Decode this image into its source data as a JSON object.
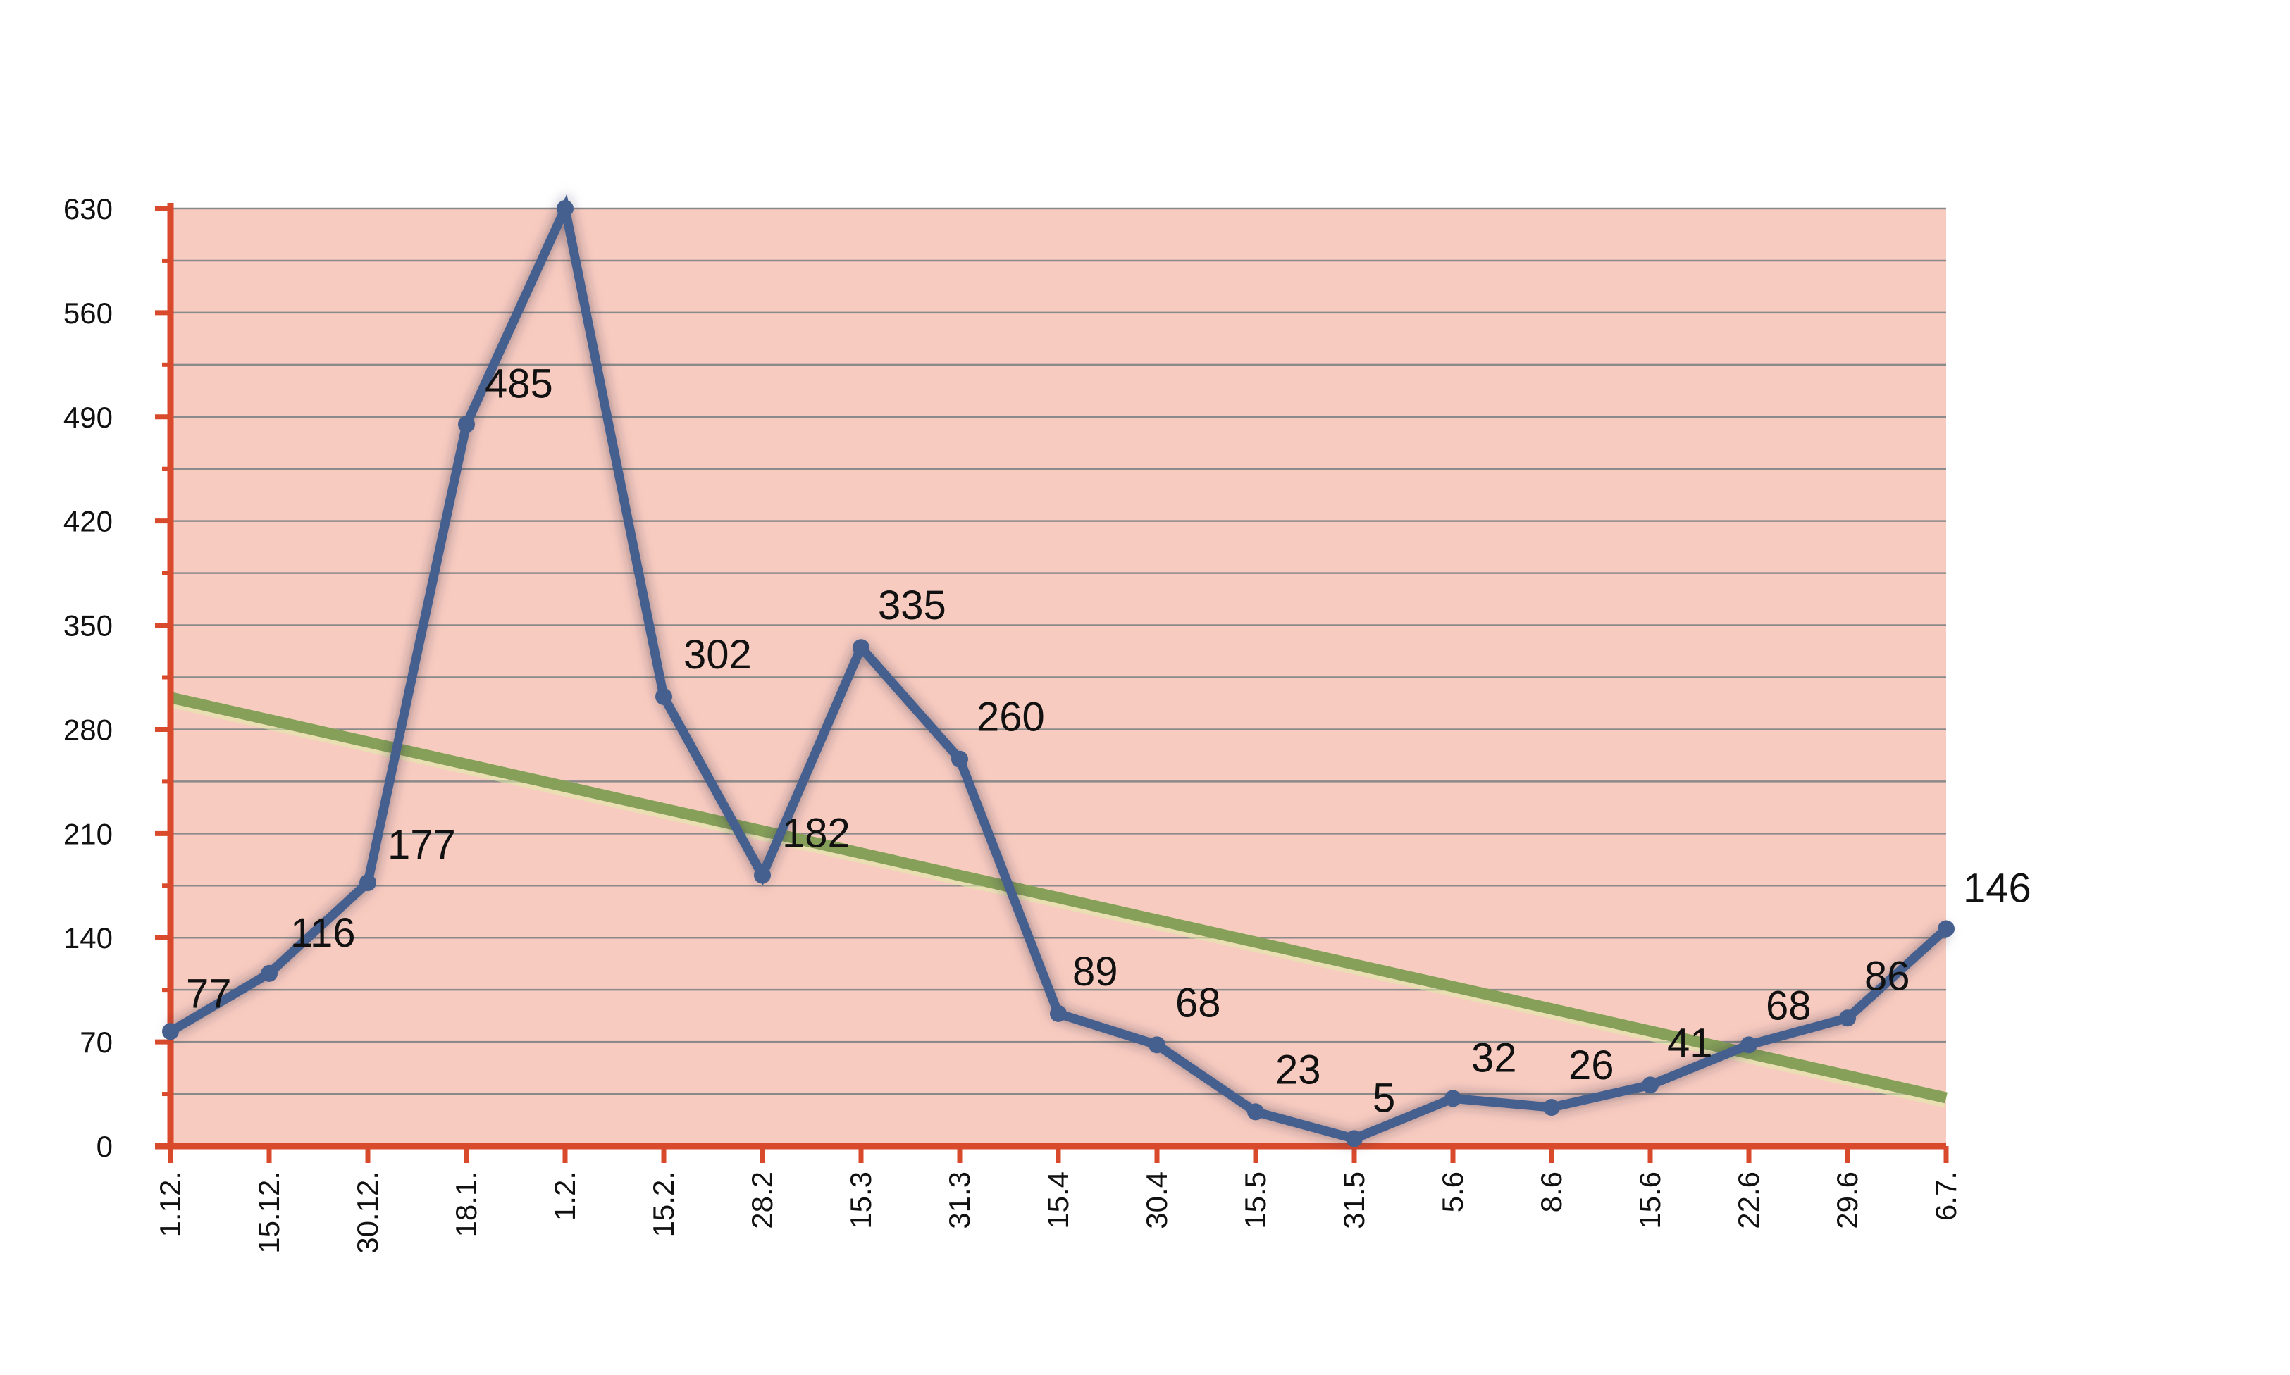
{
  "chart_data": {
    "type": "line",
    "categories": [
      "1.12.",
      "15.12.",
      "30.12.",
      "18.1.",
      "1.2.",
      "15.2.",
      "28.2",
      "15.3",
      "31.3",
      "15.4",
      "30.4",
      "15.5",
      "31.5",
      "5.6",
      "8.6",
      "15.6",
      "22.6",
      "29.6",
      "6.7."
    ],
    "series": [
      {
        "values": [
          77,
          116,
          177,
          485,
          630,
          302,
          182,
          335,
          260,
          89,
          68,
          23,
          5,
          32,
          26,
          41,
          68,
          86,
          146
        ],
        "labels": [
          "77",
          "116",
          "177",
          "485",
          "",
          "302",
          "182",
          "335",
          "260",
          "89",
          "68",
          "23",
          "5",
          "32",
          "26",
          "41",
          "68",
          "86",
          "146"
        ],
        "color": "#45608f"
      }
    ],
    "trendline": {
      "start": 300,
      "end": 31,
      "color": "#86a059"
    },
    "ylim": [
      0,
      630
    ],
    "yticks": [
      0,
      70,
      140,
      210,
      280,
      350,
      420,
      490,
      560,
      630
    ],
    "minor_gridline_step": 35,
    "grid": true,
    "legend": "none",
    "title": "",
    "xlabel": "",
    "ylabel": "",
    "colors": {
      "plot_background": "#f8cbc0",
      "axis": "#d94a2c",
      "gridline": "#8a8a8a"
    }
  }
}
